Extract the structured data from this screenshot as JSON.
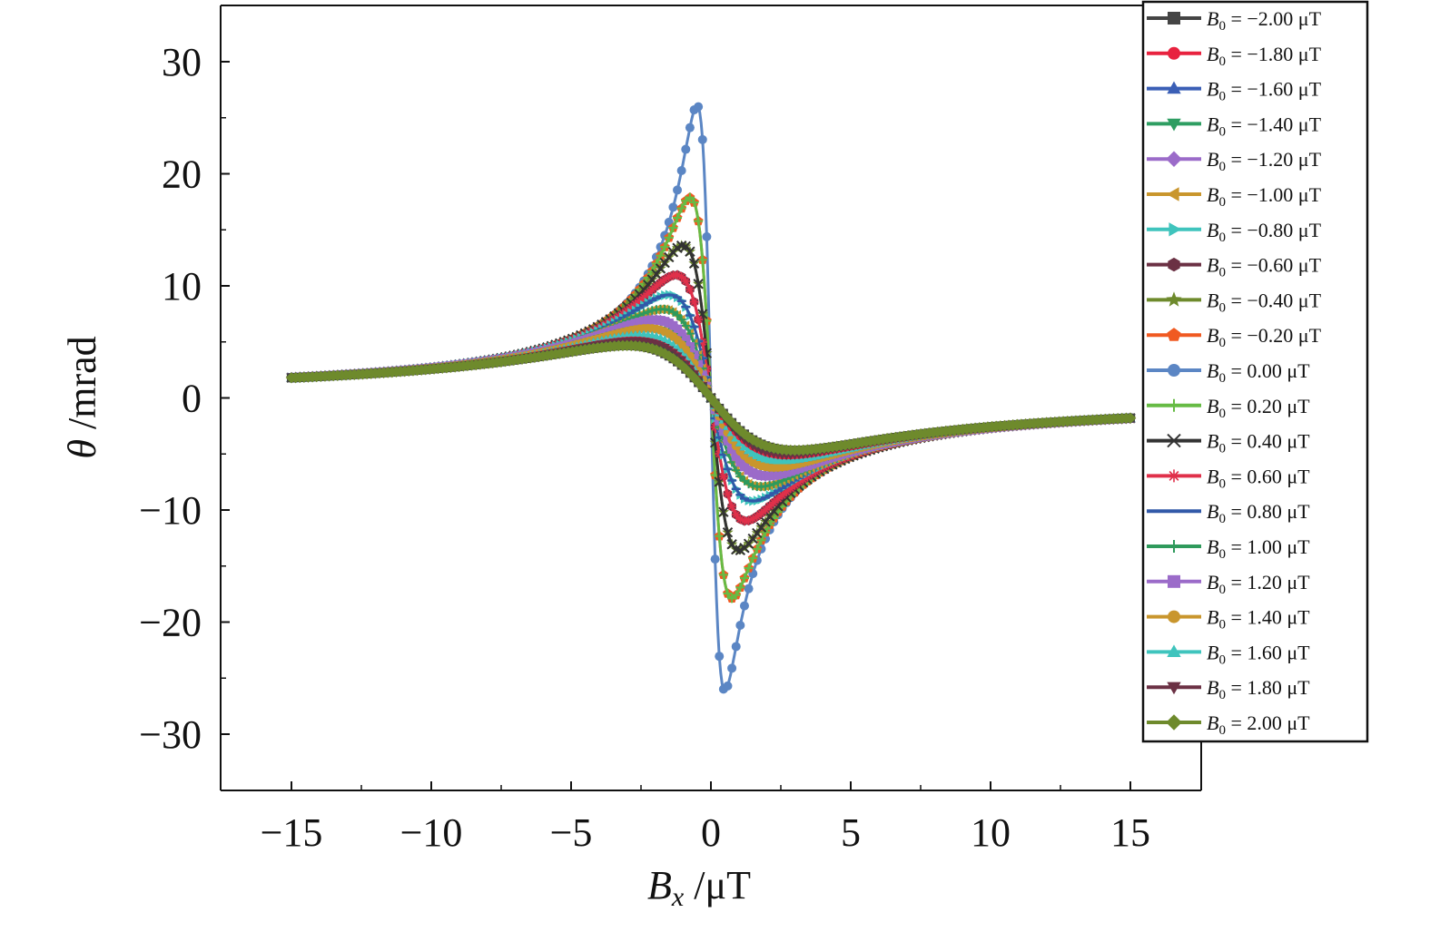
{
  "chart_data": {
    "type": "line",
    "xlabel": "B_x /μT",
    "ylabel": "θ /mrad",
    "xlim": [
      -17.5,
      17.5
    ],
    "ylim": [
      -35,
      35
    ],
    "x_ticks": [
      -15,
      -10,
      -5,
      0,
      5,
      10,
      15
    ],
    "y_ticks": [
      30,
      20,
      10,
      0,
      -10,
      -20,
      -30
    ],
    "x_tick_labels": [
      "−15",
      "−10",
      "−5",
      "0",
      "5",
      "10",
      "15"
    ],
    "y_tick_labels": [
      "30",
      "20",
      "10",
      "0",
      "−10",
      "−20",
      "−30"
    ],
    "grid": false,
    "legend_position": "top-right",
    "curve_model": {
      "amplitude": 28.5,
      "half_width_min": 0.5,
      "half_width_step": 0.1,
      "range": [
        -15,
        15
      ]
    },
    "series": [
      {
        "name": "B0 = −2.00 μT",
        "legend": "= −2.00 μT",
        "b0": -2.0,
        "color": "#444444",
        "marker": "square"
      },
      {
        "name": "B0 = −1.80 μT",
        "legend": "= −1.80 μT",
        "b0": -1.8,
        "color": "#e8223f",
        "marker": "circle"
      },
      {
        "name": "B0 = −1.60 μT",
        "legend": "= −1.60 μT",
        "b0": -1.6,
        "color": "#3b5fb6",
        "marker": "triangle-up"
      },
      {
        "name": "B0 = −1.40 μT",
        "legend": "= −1.40 μT",
        "b0": -1.4,
        "color": "#2e9e62",
        "marker": "triangle-down"
      },
      {
        "name": "B0 = −1.20 μT",
        "legend": "= −1.20 μT",
        "b0": -1.2,
        "color": "#9b6bc9",
        "marker": "diamond"
      },
      {
        "name": "B0 = −1.00 μT",
        "legend": "= −1.00 μT",
        "b0": -1.0,
        "color": "#c9962d",
        "marker": "triangle-left"
      },
      {
        "name": "B0 = −0.80 μT",
        "legend": "= −0.80 μT",
        "b0": -0.8,
        "color": "#3fc4bd",
        "marker": "triangle-right"
      },
      {
        "name": "B0 = −0.60 μT",
        "legend": "= −0.60 μT",
        "b0": -0.6,
        "color": "#6b3144",
        "marker": "hexagon"
      },
      {
        "name": "B0 = −0.40 μT",
        "legend": "= −0.40 μT",
        "b0": -0.4,
        "color": "#6e8a2c",
        "marker": "star"
      },
      {
        "name": "B0 = −0.20 μT",
        "legend": "= −0.20 μT",
        "b0": -0.2,
        "color": "#f05a22",
        "marker": "pentagon"
      },
      {
        "name": "B0 = 0.00 μT",
        "legend": "= 0.00 μT",
        "b0": 0.0,
        "color": "#5b86c4",
        "marker": "circle"
      },
      {
        "name": "B0 = 0.20 μT",
        "legend": "= 0.20 μT",
        "b0": 0.2,
        "color": "#66bb44",
        "marker": "plus"
      },
      {
        "name": "B0 = 0.40 μT",
        "legend": "= 0.40 μT",
        "b0": 0.4,
        "color": "#333333",
        "marker": "x"
      },
      {
        "name": "B0 = 0.60 μT",
        "legend": "= 0.60 μT",
        "b0": 0.6,
        "color": "#e0304a",
        "marker": "asterisk"
      },
      {
        "name": "B0 = 0.80 μT",
        "legend": "= 0.80 μT",
        "b0": 0.8,
        "color": "#3159a8",
        "marker": "dash"
      },
      {
        "name": "B0 = 1.00 μT",
        "legend": "= 1.00 μT",
        "b0": 1.0,
        "color": "#2f9a5c",
        "marker": "plus"
      },
      {
        "name": "B0 = 1.20 μT",
        "legend": "= 1.20 μT",
        "b0": 1.2,
        "color": "#9b6bc9",
        "marker": "square"
      },
      {
        "name": "B0 = 1.40 μT",
        "legend": "= 1.40 μT",
        "b0": 1.4,
        "color": "#c9962d",
        "marker": "circle"
      },
      {
        "name": "B0 = 1.60 μT",
        "legend": "= 1.60 μT",
        "b0": 1.6,
        "color": "#3fc4bd",
        "marker": "triangle-up"
      },
      {
        "name": "B0 = 1.80 μT",
        "legend": "= 1.80 μT",
        "b0": 1.8,
        "color": "#6b3144",
        "marker": "triangle-down"
      },
      {
        "name": "B0 = 2.00 μT",
        "legend": "= 2.00 μT",
        "b0": 2.0,
        "color": "#6e8a2c",
        "marker": "diamond"
      }
    ]
  }
}
